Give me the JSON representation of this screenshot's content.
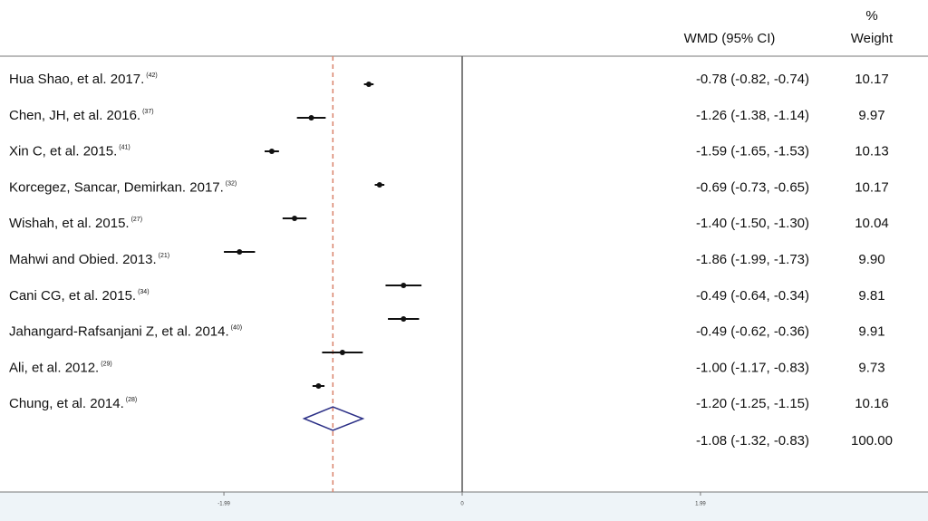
{
  "chart_data": {
    "type": "forest",
    "header_estimate": "WMD (95% CI)",
    "header_weight_top": "%",
    "header_weight": "Weight",
    "categories": [
      "Hua Shao, et al. 2017.",
      "Chen, JH, et al. 2016.",
      "Xin C, et al. 2015.",
      "Korcegez, Sancar, Demirkan. 2017.",
      "Wishah, et al. 2015.",
      "Mahwi and Obied. 2013.",
      "Cani CG, et al. 2015.",
      "Jahangard-Rafsanjani Z, et al. 2014.",
      "Ali, et al. 2012.",
      "Chung, et al. 2014."
    ],
    "refs": [
      "(42)",
      "(37)",
      "(41)",
      "(32)",
      "(27)",
      "(21)",
      "(34)",
      "(40)",
      "(29)",
      "(28)"
    ],
    "values": [
      -0.78,
      -1.26,
      -1.59,
      -0.69,
      -1.4,
      -1.86,
      -0.49,
      -0.49,
      -1.0,
      -1.2
    ],
    "lower": [
      -0.82,
      -1.38,
      -1.65,
      -0.73,
      -1.5,
      -1.99,
      -0.64,
      -0.62,
      -1.17,
      -1.25
    ],
    "upper": [
      -0.74,
      -1.14,
      -1.53,
      -0.65,
      -1.3,
      -1.73,
      -0.34,
      -0.36,
      -0.83,
      -1.15
    ],
    "ci_labels": [
      "-0.78 (-0.82, -0.74)",
      "-1.26 (-1.38, -1.14)",
      "-1.59 (-1.65, -1.53)",
      "-0.69 (-0.73, -0.65)",
      "-1.40 (-1.50, -1.30)",
      "-1.86 (-1.99, -1.73)",
      "-0.49 (-0.64, -0.34)",
      "-0.49 (-0.62, -0.36)",
      "-1.00 (-1.17, -0.83)",
      "-1.20 (-1.25, -1.15)"
    ],
    "weights": [
      "10.17",
      "9.97",
      "10.13",
      "10.17",
      "10.04",
      "9.90",
      "9.81",
      "9.91",
      "9.73",
      "10.16"
    ],
    "overall": {
      "value": -1.08,
      "lower": -1.32,
      "upper": -0.83,
      "label": "-1.08 (-1.32, -0.83)",
      "weight": "100.00"
    },
    "xlim": [
      -3.86,
      3.86
    ],
    "xticks": [
      -1.99,
      0,
      1.99
    ],
    "colors": {
      "marker": "#111111",
      "diamond": "#2b2f86",
      "overall_line": "#d9826b",
      "null_line": "#555555"
    }
  }
}
